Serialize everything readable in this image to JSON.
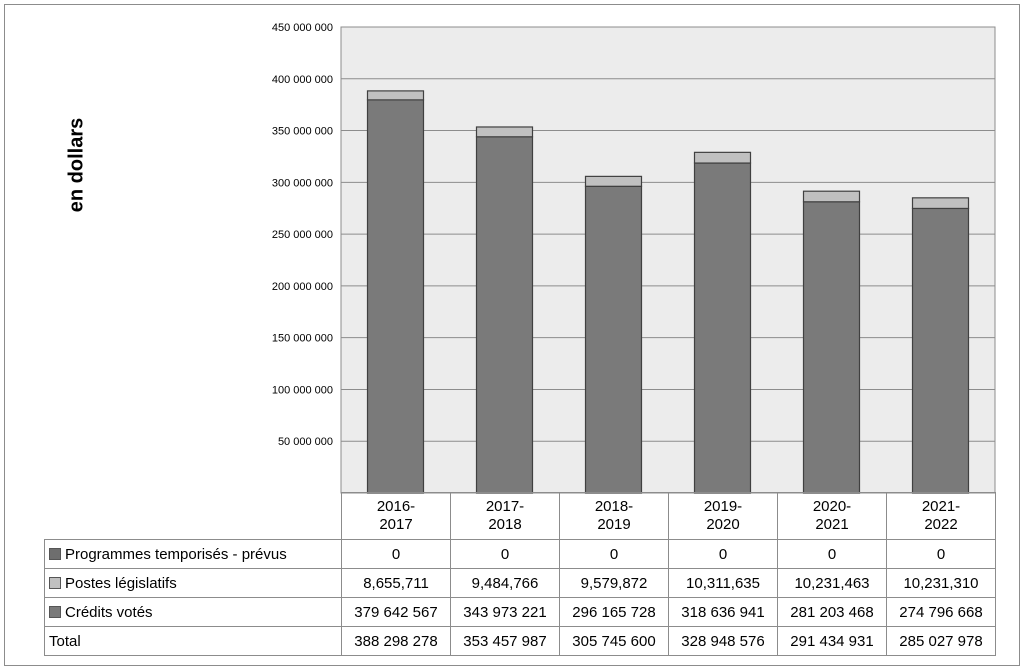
{
  "chart_data": {
    "type": "bar",
    "stacked": true,
    "ylabel": "en dollars",
    "ylim": [
      0,
      450000000
    ],
    "yticks": [
      50000000,
      100000000,
      150000000,
      200000000,
      250000000,
      300000000,
      350000000,
      400000000,
      450000000
    ],
    "ytick_labels": [
      "50 000 000",
      "100 000 000",
      "150 000 000",
      "200 000 000",
      "250 000 000",
      "300 000 000",
      "350 000 000",
      "400 000 000",
      "450 000 000"
    ],
    "grid": true,
    "categories": [
      "2016-2017",
      "2017-2018",
      "2018-2019",
      "2019-2020",
      "2020-2021",
      "2021-2022"
    ],
    "category_lines": [
      [
        "2016-",
        "2017"
      ],
      [
        "2017-",
        "2018"
      ],
      [
        "2018-",
        "2019"
      ],
      [
        "2019-",
        "2020"
      ],
      [
        "2020-",
        "2021"
      ],
      [
        "2021-",
        "2022"
      ]
    ],
    "series": [
      {
        "name": "Programmes temporisés - prévus",
        "color": "#6e6e6e",
        "values": [
          0,
          0,
          0,
          0,
          0,
          0
        ],
        "labels": [
          "0",
          "0",
          "0",
          "0",
          "0",
          "0"
        ]
      },
      {
        "name": "Postes législatifs",
        "color": "#c0c0c0",
        "values": [
          8655711,
          9484766,
          9579872,
          10311635,
          10231463,
          10231310
        ],
        "labels": [
          "8,655,711",
          "9,484,766",
          "9,579,872",
          "10,311,635",
          "10,231,463",
          "10,231,310"
        ]
      },
      {
        "name": "Crédits votés",
        "color": "#7a7a7a",
        "values": [
          379642567,
          343973221,
          296165728,
          318636941,
          281203468,
          274796668
        ],
        "labels": [
          "379 642 567",
          "343 973 221",
          "296 165 728",
          "318 636 941",
          "281 203 468",
          "274 796 668"
        ]
      }
    ],
    "total": {
      "name": "Total",
      "values": [
        388298278,
        353457987,
        305745600,
        328948576,
        291434931,
        285027978
      ],
      "labels": [
        "388 298 278",
        "353 457 987",
        "305 745 600",
        "328 948 576",
        "291 434 931",
        "285 027 978"
      ]
    }
  }
}
